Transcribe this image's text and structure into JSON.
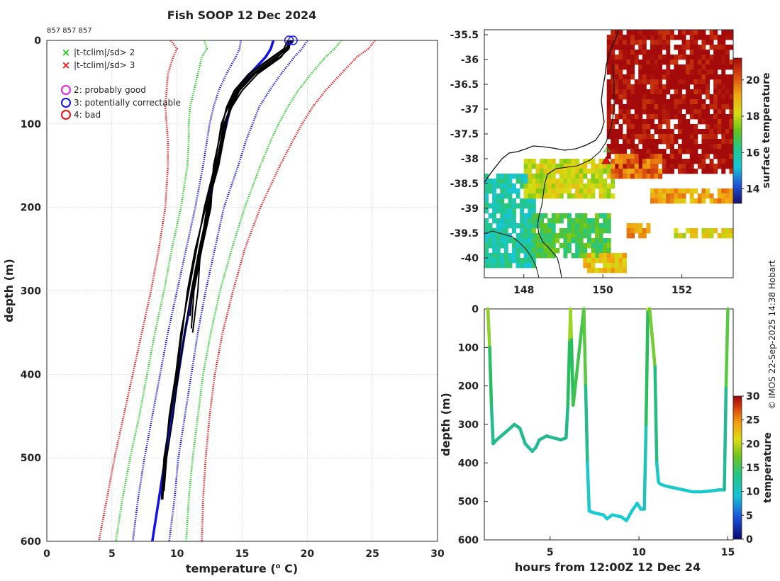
{
  "figure": {
    "title": "Fish SOOP 12 Dec 2024",
    "ids_label": "857 857 857",
    "credit": "© IMOS 22-Sep-2025 14:38 Hobart"
  },
  "colors": {
    "sd2": "#22cc22",
    "sd3": "#ee1111",
    "clim": "#1111ee",
    "obs": "#000000",
    "flag_good": "#dd22dd",
    "flag_correctable": "#1111ee",
    "flag_bad": "#ee1111"
  },
  "legend": {
    "sd2_label": "|t-tclim|/sd> 2",
    "sd3_label": "|t-tclim|/sd> 3",
    "flag2_label": "2: probably good",
    "flag3_label": "3: potentially correctable",
    "flag4_label": "4: bad"
  },
  "chart_data": [
    {
      "type": "line",
      "name": "profile",
      "xlabel": "temperature (o C)",
      "ylabel": "depth (m)",
      "xlim": [
        0,
        30
      ],
      "ylim": [
        600,
        0
      ],
      "xticks": [
        0,
        5,
        10,
        15,
        20,
        25,
        30
      ],
      "yticks": [
        0,
        100,
        200,
        300,
        400,
        500,
        600
      ],
      "grid": true,
      "depth": [
        0,
        10,
        20,
        40,
        60,
        80,
        100,
        120,
        150,
        200,
        250,
        300,
        350,
        400,
        450,
        500,
        550,
        600
      ],
      "climatology": [
        17.4,
        17.2,
        16.8,
        15.6,
        14.6,
        14.1,
        13.8,
        13.5,
        13.0,
        12.4,
        11.8,
        11.2,
        10.6,
        10.1,
        9.6,
        9.1,
        8.6,
        8.1
      ],
      "envelopes": [
        {
          "name": "lower sd3",
          "kind": "sd3",
          "values": [
            9.5,
            10.0,
            9.7,
            9.3,
            9.2,
            9.1,
            9.2,
            9.3,
            9.3,
            9.1,
            8.6,
            8.0,
            7.3,
            6.6,
            5.9,
            5.2,
            4.6,
            4.0
          ]
        },
        {
          "name": "lower sd2",
          "kind": "sd2",
          "values": [
            12.1,
            12.3,
            11.9,
            11.6,
            11.3,
            11.0,
            10.9,
            10.9,
            10.8,
            10.3,
            9.6,
            9.0,
            8.3,
            7.7,
            7.1,
            6.4,
            5.8,
            5.3
          ]
        },
        {
          "name": "clim -1sd",
          "kind": "clim",
          "values": [
            14.9,
            14.8,
            14.5,
            13.8,
            13.2,
            12.8,
            12.5,
            12.3,
            12.0,
            11.4,
            10.7,
            10.0,
            9.3,
            8.7,
            8.1,
            7.5,
            7.0,
            6.6
          ]
        },
        {
          "name": "clim +1sd",
          "kind": "clim",
          "values": [
            20.0,
            19.6,
            19.0,
            18.0,
            17.1,
            16.3,
            15.8,
            15.3,
            14.7,
            13.6,
            12.9,
            12.2,
            11.6,
            11.1,
            10.6,
            10.1,
            9.8,
            9.4
          ]
        },
        {
          "name": "upper sd2",
          "kind": "sd2",
          "values": [
            22.6,
            22.1,
            21.4,
            20.3,
            19.3,
            18.5,
            17.8,
            17.2,
            16.4,
            15.2,
            14.2,
            13.3,
            12.6,
            12.0,
            11.6,
            11.2,
            10.9,
            10.7
          ]
        },
        {
          "name": "upper sd3",
          "kind": "sd3",
          "values": [
            25.2,
            24.7,
            23.8,
            22.6,
            21.4,
            20.4,
            19.6,
            18.9,
            17.9,
            16.4,
            15.2,
            14.3,
            13.5,
            12.9,
            12.5,
            12.2,
            12.0,
            11.9
          ]
        }
      ],
      "observed": [
        {
          "depth": [
            0,
            10,
            20,
            40,
            60,
            80,
            100,
            150,
            200,
            250,
            300,
            330
          ],
          "temp": [
            18.6,
            18.4,
            18.0,
            16.2,
            15.0,
            14.2,
            13.6,
            13.0,
            12.5,
            11.8,
            11.2,
            11.0
          ]
        },
        {
          "depth": [
            0,
            10,
            20,
            40,
            60,
            80,
            100,
            150,
            200,
            250,
            300,
            350
          ],
          "temp": [
            18.8,
            18.5,
            17.6,
            15.8,
            14.6,
            14.0,
            13.8,
            13.2,
            12.3,
            11.8,
            11.6,
            11.2
          ]
        },
        {
          "depth": [
            0,
            10,
            20,
            40,
            60,
            80,
            100,
            150,
            200,
            250,
            300,
            350,
            400,
            450,
            500,
            550
          ],
          "temp": [
            18.9,
            18.3,
            17.4,
            15.6,
            14.5,
            13.9,
            13.4,
            12.9,
            12.1,
            11.5,
            10.9,
            10.3,
            9.9,
            9.4,
            9.1,
            8.9
          ]
        },
        {
          "depth": [
            0,
            10,
            20,
            40,
            60,
            80,
            100,
            150,
            200,
            250,
            300,
            350,
            400,
            450,
            500,
            540
          ],
          "temp": [
            18.7,
            18.6,
            17.9,
            16.0,
            14.8,
            14.2,
            13.7,
            13.1,
            12.4,
            11.7,
            11.1,
            10.6,
            10.1,
            9.7,
            9.2,
            9.0
          ]
        },
        {
          "depth": [
            0,
            10,
            20,
            40,
            60,
            80,
            100,
            150,
            200,
            250,
            300,
            345
          ],
          "temp": [
            18.5,
            18.2,
            17.3,
            15.5,
            14.4,
            13.8,
            13.5,
            12.8,
            12.6,
            11.9,
            11.3,
            11.1
          ]
        },
        {
          "depth": [
            0,
            10,
            20,
            40,
            60,
            80,
            100,
            150,
            200,
            250,
            300,
            350,
            400,
            450,
            500,
            550
          ],
          "temp": [
            18.8,
            18.4,
            17.7,
            15.9,
            14.7,
            14.1,
            13.6,
            13.0,
            12.2,
            11.4,
            10.8,
            10.4,
            10.0,
            9.5,
            9.0,
            8.8
          ]
        }
      ],
      "flags": [
        {
          "depth": 0,
          "temp": 18.6,
          "flag": 3
        },
        {
          "depth": 0,
          "temp": 18.9,
          "flag": 3
        }
      ]
    },
    {
      "type": "heatmap",
      "name": "map",
      "xlabel": "",
      "ylabel": "",
      "xlim": [
        147.0,
        153.3
      ],
      "ylim": [
        -40.4,
        -35.4
      ],
      "xticks": [
        148,
        150,
        152
      ],
      "yticks": [
        -35.5,
        -36,
        -36.5,
        -37,
        -37.5,
        -38,
        -38.5,
        -39,
        -39.5,
        -40
      ],
      "colorbar_label": "surface temperature",
      "colorbar_range": [
        13.2,
        21.2
      ],
      "colorbar_ticks": [
        14,
        16,
        18,
        20
      ],
      "deployment_x": 150.05,
      "deployment_y": -38.1,
      "regions": [
        {
          "x0": 150.1,
          "x1": 153.3,
          "y0": -35.4,
          "y1": -38.3,
          "t": 21.2
        },
        {
          "x0": 147.0,
          "x1": 148.3,
          "y0": -38.3,
          "y1": -40.2,
          "t": 15.8
        },
        {
          "x0": 148.0,
          "x1": 150.3,
          "y0": -38.0,
          "y1": -38.8,
          "t": 18.1
        },
        {
          "x0": 148.2,
          "x1": 150.2,
          "y0": -39.1,
          "y1": -40.0,
          "t": 16.8
        },
        {
          "x0": 150.2,
          "x1": 151.5,
          "y0": -37.9,
          "y1": -38.4,
          "t": 19.8
        },
        {
          "x0": 151.2,
          "x1": 153.3,
          "y0": -38.6,
          "y1": -38.9,
          "t": 19.2
        },
        {
          "x0": 149.5,
          "x1": 150.6,
          "y0": -39.9,
          "y1": -40.3,
          "t": 18.8
        },
        {
          "x0": 150.6,
          "x1": 151.2,
          "y0": -39.3,
          "y1": -39.6,
          "t": 19.5
        },
        {
          "x0": 151.8,
          "x1": 153.3,
          "y0": -39.4,
          "y1": -39.6,
          "t": 18.3
        }
      ]
    },
    {
      "type": "line",
      "name": "track",
      "xlabel": "hours from 12:00Z 12 Dec 24",
      "ylabel": "depth (m)",
      "xlim": [
        1.3,
        15.3
      ],
      "ylim": [
        600,
        0
      ],
      "xticks": [
        5,
        10,
        15
      ],
      "yticks": [
        0,
        100,
        200,
        300,
        400,
        500,
        600
      ],
      "colorbar_label": "temperature",
      "colorbar_range": [
        0,
        30
      ],
      "colorbar_ticks": [
        0,
        5,
        10,
        15,
        20,
        25,
        30
      ],
      "x": [
        1.5,
        1.6,
        1.7,
        1.8,
        2.0,
        2.5,
        3.0,
        3.3,
        3.6,
        4.0,
        4.2,
        4.4,
        4.8,
        5.2,
        5.6,
        5.9,
        6.0,
        6.1,
        6.15,
        6.2,
        6.3,
        6.9,
        7.0,
        7.1,
        7.2,
        7.5,
        8.0,
        8.2,
        8.5,
        9.0,
        9.3,
        9.6,
        9.9,
        10.1,
        10.3,
        10.4,
        10.5,
        10.6,
        10.9,
        11.0,
        11.1,
        11.2,
        11.5,
        12.0,
        12.5,
        13.0,
        13.5,
        14.0,
        14.5,
        14.8,
        14.9,
        15.0
      ],
      "depth": [
        0,
        100,
        250,
        350,
        340,
        320,
        300,
        310,
        350,
        370,
        360,
        340,
        330,
        335,
        340,
        335,
        250,
        80,
        0,
        80,
        250,
        0,
        200,
        400,
        525,
        530,
        535,
        545,
        535,
        540,
        550,
        525,
        505,
        520,
        520,
        300,
        0,
        0,
        150,
        400,
        450,
        455,
        460,
        465,
        470,
        475,
        475,
        473,
        470,
        470,
        200,
        0
      ]
    }
  ]
}
